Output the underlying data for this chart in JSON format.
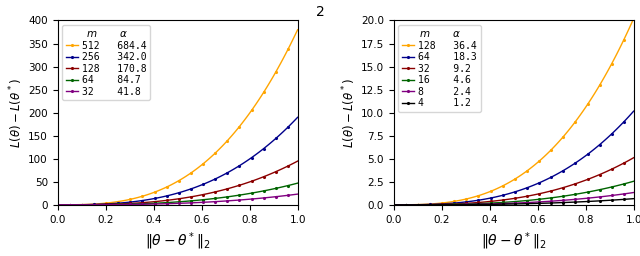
{
  "left_plot": {
    "series": [
      {
        "m": 512,
        "alpha": 684.4,
        "color": "#FFA500",
        "marker": "."
      },
      {
        "m": 256,
        "alpha": 342.0,
        "color": "#00008B",
        "marker": "."
      },
      {
        "m": 128,
        "alpha": 170.8,
        "color": "#8B0000",
        "marker": "."
      },
      {
        "m": 64,
        "alpha": 84.7,
        "color": "#006400",
        "marker": "."
      },
      {
        "m": 32,
        "alpha": 41.8,
        "color": "#800080",
        "marker": "."
      }
    ],
    "ylim": [
      0,
      400
    ],
    "yticks": [
      0,
      50,
      100,
      150,
      200,
      250,
      300,
      350,
      400
    ]
  },
  "right_plot": {
    "series": [
      {
        "m": 128,
        "alpha": 36.4,
        "color": "#FFA500",
        "marker": "."
      },
      {
        "m": 64,
        "alpha": 18.3,
        "color": "#00008B",
        "marker": "."
      },
      {
        "m": 32,
        "alpha": 9.2,
        "color": "#8B0000",
        "marker": "."
      },
      {
        "m": 16,
        "alpha": 4.6,
        "color": "#006400",
        "marker": "."
      },
      {
        "m": 8,
        "alpha": 2.4,
        "color": "#800080",
        "marker": "."
      },
      {
        "m": 4,
        "alpha": 1.2,
        "color": "#000000",
        "marker": "."
      }
    ],
    "ylim": [
      0,
      20
    ],
    "yticks": [
      0.0,
      2.5,
      5.0,
      7.5,
      10.0,
      12.5,
      15.0,
      17.5,
      20.0
    ]
  },
  "xlabel": "$\\|\\theta - \\theta^*\\|_2$",
  "ylabel": "$L(\\theta) - L(\\theta^*)$",
  "xticks": [
    0.0,
    0.2,
    0.4,
    0.6,
    0.8,
    1.0
  ],
  "n_points": 100,
  "x_max": 1.0,
  "marker_size": 2.5,
  "marker_every": 5,
  "linewidth": 1.0,
  "power": 2.9,
  "scale": 0.555,
  "suptitle": "2"
}
